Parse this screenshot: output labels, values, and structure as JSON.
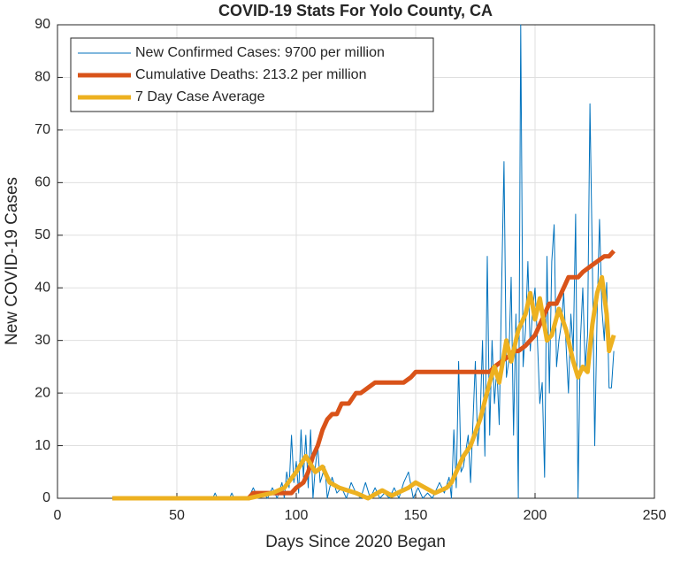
{
  "chart_data": {
    "type": "line",
    "title": "COVID-19 Stats For Yolo County, CA",
    "x_label": "Days Since 2020 Began",
    "y_label": "New COVID-19 Cases",
    "xlim": [
      0,
      250
    ],
    "xticks": [
      0,
      50,
      100,
      150,
      200,
      250
    ],
    "ylim": [
      0,
      90
    ],
    "yticks": [
      0,
      10,
      20,
      30,
      40,
      50,
      60,
      70,
      80,
      90
    ],
    "grid": true,
    "legend_position": "northwest",
    "series": [
      {
        "name": "New Confirmed Cases: 9700 per million",
        "color": "#0072BD",
        "line_width": 1,
        "x": [
          23,
          65,
          66,
          67,
          72,
          73,
          74,
          80,
          82,
          84,
          86,
          88,
          90,
          92,
          94,
          95,
          96,
          97,
          98,
          99,
          100,
          101,
          102,
          103,
          104,
          105,
          106,
          107,
          108,
          109,
          110,
          112,
          113,
          115,
          117,
          119,
          121,
          123,
          125,
          127,
          129,
          131,
          133,
          135,
          137,
          139,
          141,
          143,
          145,
          147,
          149,
          151,
          153,
          155,
          157,
          160,
          162,
          164,
          165,
          166,
          167,
          168,
          169,
          170,
          172,
          173,
          175,
          176,
          177,
          178,
          179,
          180,
          181,
          182,
          183,
          184,
          185,
          186,
          187,
          188,
          189,
          190,
          191,
          192,
          193,
          194,
          195,
          196,
          197,
          198,
          199,
          200,
          201,
          202,
          203,
          204,
          205,
          206,
          207,
          208,
          209,
          210,
          211,
          212,
          213,
          214,
          215,
          216,
          217,
          218,
          219,
          220,
          221,
          222,
          223,
          224,
          225,
          226,
          227,
          228,
          229,
          230,
          231,
          232,
          233
        ],
        "values": [
          0,
          0,
          1,
          0,
          0,
          1,
          0,
          0,
          2,
          0,
          1,
          0,
          2,
          0,
          3,
          0,
          5,
          2,
          12,
          3,
          7,
          1,
          13,
          4,
          12,
          2,
          13,
          0,
          6,
          10,
          3,
          6,
          0,
          4,
          1,
          2,
          0,
          3,
          1,
          0,
          3,
          0,
          2,
          0,
          1,
          0,
          2,
          0,
          3,
          5,
          0,
          2,
          0,
          1,
          0,
          3,
          1,
          4,
          0,
          13,
          2,
          26,
          5,
          6,
          12,
          3,
          26,
          10,
          15,
          30,
          8,
          46,
          12,
          30,
          18,
          25,
          14,
          40,
          64,
          23,
          26,
          42,
          12,
          35,
          0,
          90,
          25,
          32,
          45,
          28,
          36,
          40,
          30,
          18,
          22,
          4,
          46,
          20,
          45,
          52,
          25,
          30,
          33,
          39,
          29,
          20,
          35,
          28,
          54,
          0,
          30,
          40,
          25,
          31,
          75,
          45,
          10,
          35,
          53,
          36,
          30,
          41,
          21,
          21,
          28
        ]
      },
      {
        "name": "Cumulative Deaths: 213.2 per million",
        "color": "#D95319",
        "line_width": 5,
        "x": [
          23,
          80,
          82,
          98,
          100,
          103,
          105,
          107,
          109,
          111,
          113,
          115,
          117,
          119,
          122,
          125,
          127,
          130,
          133,
          145,
          148,
          150,
          181,
          183,
          186,
          189,
          191,
          193,
          196,
          198,
          200,
          202,
          204,
          206,
          209,
          211,
          214,
          218,
          220,
          223,
          226,
          229,
          231,
          233
        ],
        "values": [
          0,
          0,
          1,
          1,
          2,
          3,
          5,
          8,
          10,
          13,
          15,
          16,
          16,
          18,
          18,
          20,
          20,
          21,
          22,
          22,
          23,
          24,
          24,
          25,
          26,
          27,
          28,
          28,
          29,
          30,
          31,
          33,
          35,
          37,
          37,
          39,
          42,
          42,
          43,
          44,
          45,
          46,
          46,
          47
        ]
      },
      {
        "name": "7 Day Case Average",
        "color": "#EDB120",
        "line_width": 5,
        "x": [
          23,
          80,
          85,
          90,
          95,
          100,
          104,
          108,
          111,
          114,
          118,
          125,
          130,
          136,
          140,
          147,
          150,
          158,
          163,
          165,
          170,
          173,
          177,
          181,
          183,
          185,
          188,
          190,
          193,
          196,
          198,
          200,
          202,
          205,
          207,
          210,
          213,
          216,
          218,
          220,
          222,
          224,
          226,
          228,
          230,
          231,
          233
        ],
        "values": [
          0,
          0,
          0.5,
          1,
          2,
          5,
          8,
          5,
          6,
          3,
          2,
          1,
          0,
          1.5,
          0.5,
          2,
          3,
          1,
          2,
          3,
          8,
          10,
          15,
          22,
          25,
          22,
          30,
          26,
          32,
          35,
          39,
          34,
          38,
          30,
          31,
          36,
          32,
          26,
          23,
          25,
          24,
          33,
          39,
          42,
          35,
          28,
          31
        ]
      }
    ]
  }
}
